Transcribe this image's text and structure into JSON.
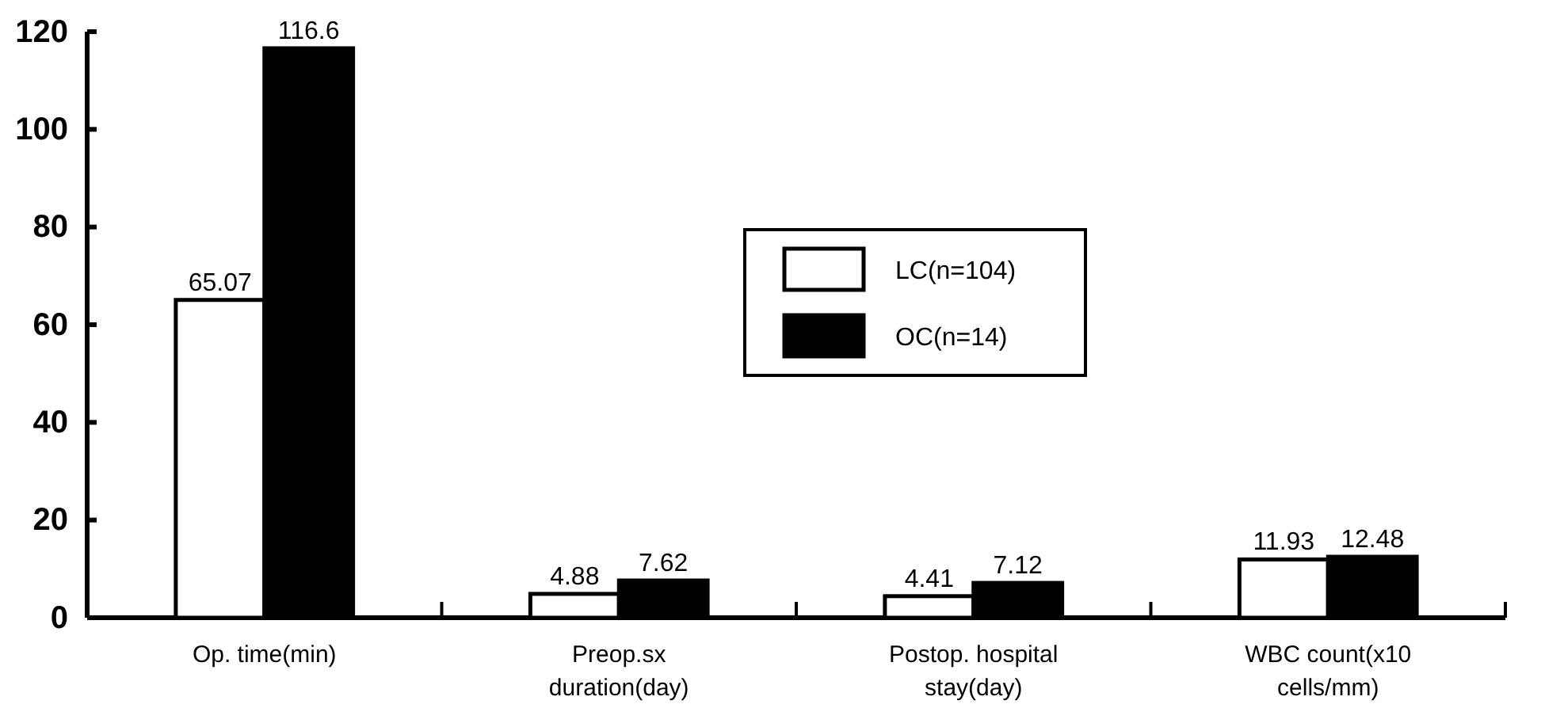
{
  "chart_data": {
    "type": "bar",
    "categories": [
      "Op. time(min)",
      "Preop.sx duration(day)",
      "Postop. hospital stay(day)",
      "WBC count(x10 cells/mm)"
    ],
    "series": [
      {
        "name": "LC(n=104)",
        "color": "#ffffff",
        "values": [
          65.07,
          4.88,
          4.41,
          11.93
        ]
      },
      {
        "name": "OC(n=14)",
        "color": "#000000",
        "values": [
          116.6,
          7.62,
          7.12,
          12.48
        ]
      }
    ],
    "ylim": [
      0,
      120
    ],
    "yticks": [
      0,
      20,
      40,
      60,
      80,
      100,
      120
    ],
    "data_labels": true,
    "legend": "top right",
    "grid": false
  }
}
